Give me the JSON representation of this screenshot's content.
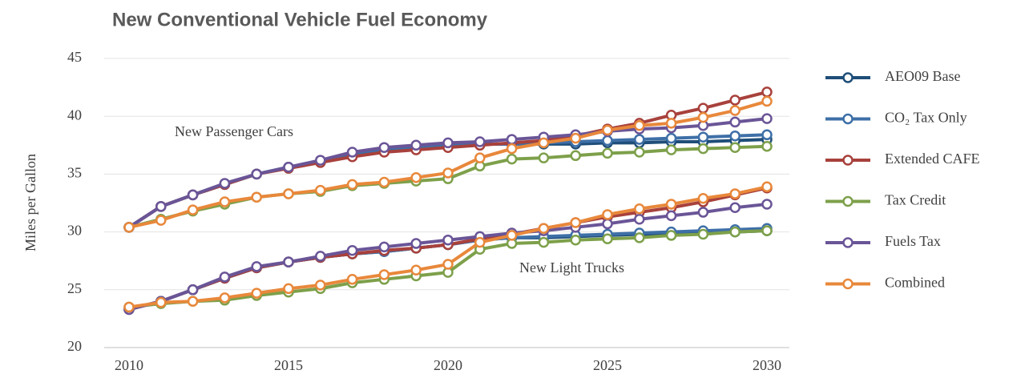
{
  "chart_data": {
    "type": "line",
    "title": "New Conventional Vehicle Fuel Economy",
    "y_label": "Miles per Gallon",
    "groups": [
      "New Passenger Cars",
      "New Light Trucks"
    ],
    "x": [
      2010,
      2011,
      2012,
      2013,
      2014,
      2015,
      2016,
      2017,
      2018,
      2019,
      2020,
      2021,
      2022,
      2023,
      2024,
      2025,
      2026,
      2027,
      2028,
      2029,
      2030
    ],
    "xlim": [
      2010,
      2030
    ],
    "xticks": [
      2010,
      2015,
      2020,
      2025,
      2030
    ],
    "ylim": [
      20,
      45
    ],
    "yticks": [
      20,
      25,
      30,
      35,
      40,
      45
    ],
    "grid": true,
    "legend": "right",
    "series": [
      {
        "name": "AEO09 Base",
        "color": "#1f4e79",
        "values": [
          [
            30.4,
            32.2,
            33.2,
            34.1,
            35.0,
            35.6,
            36.1,
            36.7,
            37.1,
            37.3,
            37.5,
            37.6,
            37.6,
            37.6,
            37.6,
            37.7,
            37.7,
            37.8,
            37.8,
            37.9,
            38.0
          ],
          [
            23.3,
            24.0,
            25.0,
            26.0,
            26.9,
            27.4,
            27.8,
            28.1,
            28.3,
            28.6,
            28.9,
            29.3,
            29.5,
            29.5,
            29.6,
            29.7,
            29.8,
            29.8,
            29.9,
            30.0,
            30.1
          ]
        ]
      },
      {
        "name": "CO₂ Tax Only",
        "color": "#3e6fa7",
        "values": [
          [
            30.4,
            32.2,
            33.2,
            34.1,
            35.0,
            35.6,
            36.1,
            36.7,
            37.1,
            37.3,
            37.5,
            37.6,
            37.6,
            37.7,
            37.8,
            37.9,
            38.0,
            38.1,
            38.2,
            38.3,
            38.4
          ],
          [
            23.3,
            24.0,
            25.0,
            26.0,
            26.9,
            27.4,
            27.8,
            28.1,
            28.3,
            28.6,
            28.9,
            29.3,
            29.5,
            29.6,
            29.7,
            29.8,
            29.9,
            30.0,
            30.1,
            30.2,
            30.3
          ]
        ]
      },
      {
        "name": "Extended CAFE",
        "color": "#a8413c",
        "values": [
          [
            30.4,
            32.2,
            33.2,
            34.1,
            35.0,
            35.5,
            36.0,
            36.5,
            36.9,
            37.1,
            37.3,
            37.5,
            37.7,
            37.9,
            38.3,
            38.9,
            39.4,
            40.1,
            40.7,
            41.4,
            42.1
          ],
          [
            23.3,
            24.0,
            25.0,
            26.0,
            26.9,
            27.4,
            27.8,
            28.1,
            28.4,
            28.6,
            28.9,
            29.4,
            29.8,
            30.3,
            30.8,
            31.3,
            31.7,
            32.1,
            32.6,
            33.2,
            33.8
          ]
        ]
      },
      {
        "name": "Tax Credit",
        "color": "#7da04a",
        "values": [
          [
            30.4,
            31.1,
            31.8,
            32.4,
            33.0,
            33.3,
            33.5,
            34.0,
            34.2,
            34.4,
            34.6,
            35.7,
            36.3,
            36.4,
            36.6,
            36.8,
            36.9,
            37.1,
            37.2,
            37.3,
            37.4
          ],
          [
            23.5,
            23.8,
            24.0,
            24.1,
            24.5,
            24.8,
            25.1,
            25.6,
            25.9,
            26.2,
            26.5,
            28.5,
            29.0,
            29.1,
            29.3,
            29.4,
            29.5,
            29.7,
            29.8,
            30.0,
            30.1
          ]
        ]
      },
      {
        "name": "Fuels Tax",
        "color": "#6a5597",
        "values": [
          [
            30.4,
            32.2,
            33.2,
            34.2,
            35.0,
            35.6,
            36.2,
            36.9,
            37.3,
            37.5,
            37.7,
            37.8,
            38.0,
            38.2,
            38.4,
            38.7,
            38.9,
            39.0,
            39.2,
            39.5,
            39.8
          ],
          [
            23.3,
            24.0,
            25.0,
            26.1,
            27.0,
            27.4,
            27.9,
            28.4,
            28.7,
            29.0,
            29.3,
            29.6,
            29.9,
            30.1,
            30.4,
            30.7,
            31.1,
            31.4,
            31.7,
            32.1,
            32.4
          ]
        ]
      },
      {
        "name": "Combined",
        "color": "#e8883b",
        "values": [
          [
            30.4,
            31.0,
            31.9,
            32.6,
            33.0,
            33.3,
            33.6,
            34.1,
            34.3,
            34.7,
            35.1,
            36.4,
            37.2,
            37.7,
            38.1,
            38.8,
            39.2,
            39.4,
            39.9,
            40.5,
            41.3
          ],
          [
            23.5,
            23.9,
            24.0,
            24.3,
            24.7,
            25.1,
            25.4,
            25.9,
            26.3,
            26.7,
            27.2,
            29.1,
            29.7,
            30.3,
            30.8,
            31.5,
            32.0,
            32.4,
            32.9,
            33.3,
            33.9
          ]
        ]
      }
    ]
  }
}
